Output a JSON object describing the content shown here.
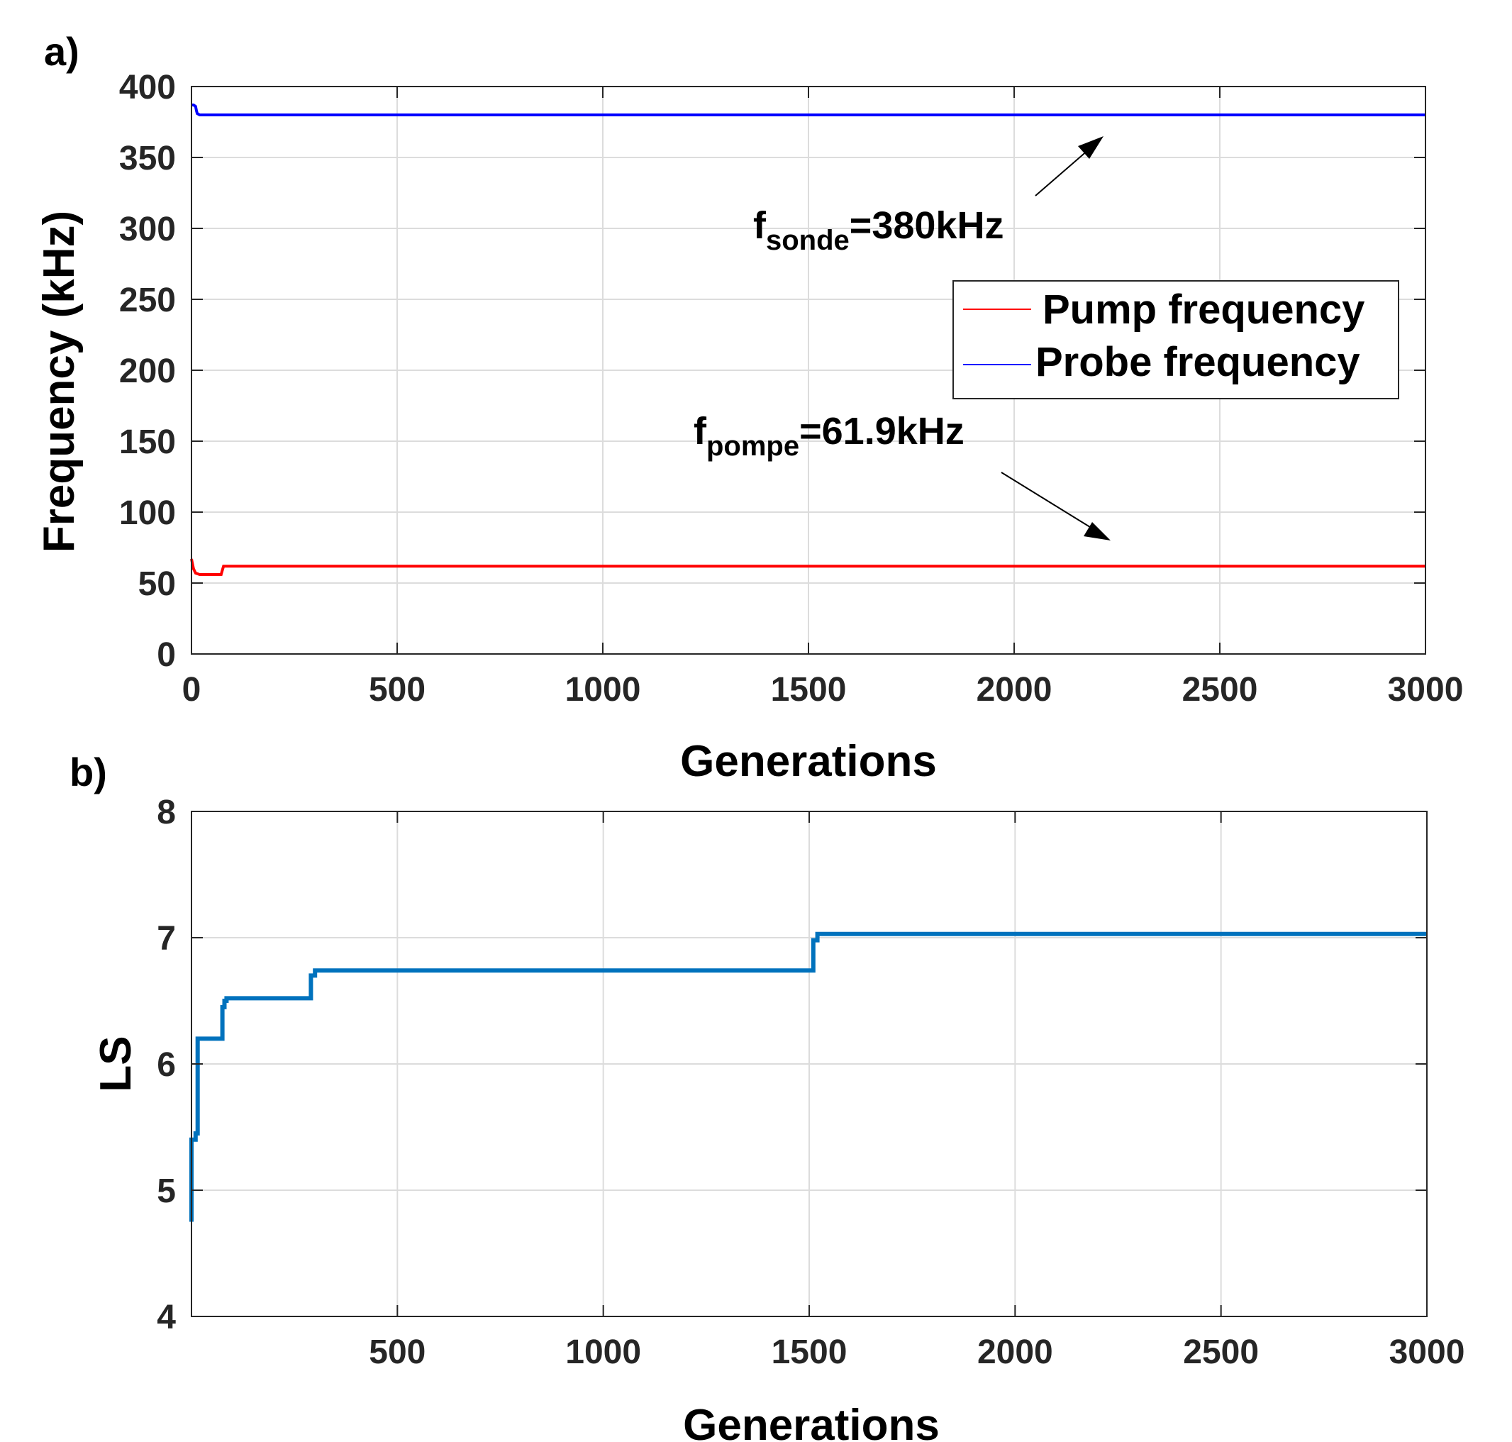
{
  "chart_data": [
    {
      "panel_label": "a)",
      "type": "line",
      "xlabel": "Generations",
      "ylabel": "Frequency (kHz)",
      "xlim": [
        0,
        3000
      ],
      "ylim": [
        0,
        400
      ],
      "xticks": [
        0,
        500,
        1000,
        1500,
        2000,
        2500,
        3000
      ],
      "yticks": [
        0,
        50,
        100,
        150,
        200,
        250,
        300,
        350,
        400
      ],
      "grid": true,
      "legend_position": "upper-right",
      "series": [
        {
          "name": "Pump frequency",
          "color": "#ff0000",
          "x": [
            0,
            2,
            5,
            10,
            20,
            40,
            60,
            72,
            74,
            76,
            78,
            80,
            100,
            3000
          ],
          "y": [
            67,
            64,
            60,
            57,
            56,
            56,
            56,
            56,
            58,
            60,
            61.9,
            61.9,
            61.9,
            61.9
          ]
        },
        {
          "name": "Probe frequency",
          "color": "#0000ff",
          "x": [
            0,
            5,
            10,
            12,
            14,
            20,
            30,
            3000
          ],
          "y": [
            387,
            387,
            386,
            383,
            381,
            380,
            380,
            380
          ]
        }
      ],
      "annotations": [
        {
          "main": "f",
          "sub": "sonde",
          "rest": "=380kHz"
        },
        {
          "main": "f",
          "sub": "pompe",
          "rest": "=61.9kHz"
        }
      ]
    },
    {
      "panel_label": "b)",
      "type": "line",
      "xlabel": "Generations",
      "ylabel": "LS",
      "xlim": [
        0,
        3000
      ],
      "ylim": [
        4,
        8
      ],
      "xticks": [
        500,
        1000,
        1500,
        2000,
        2500,
        3000
      ],
      "yticks": [
        4,
        5,
        6,
        7,
        8
      ],
      "grid": true,
      "series": [
        {
          "color": "#0072bd",
          "x": [
            0,
            0,
            10,
            10,
            15,
            15,
            75,
            75,
            80,
            80,
            85,
            85,
            95,
            95,
            290,
            290,
            300,
            300,
            1510,
            1510,
            1520,
            1520,
            3000
          ],
          "y": [
            4.75,
            5.4,
            5.4,
            5.45,
            5.45,
            6.2,
            6.2,
            6.45,
            6.45,
            6.5,
            6.5,
            6.52,
            6.52,
            6.52,
            6.52,
            6.7,
            6.7,
            6.74,
            6.74,
            6.98,
            6.98,
            7.03,
            7.03
          ]
        }
      ]
    }
  ]
}
